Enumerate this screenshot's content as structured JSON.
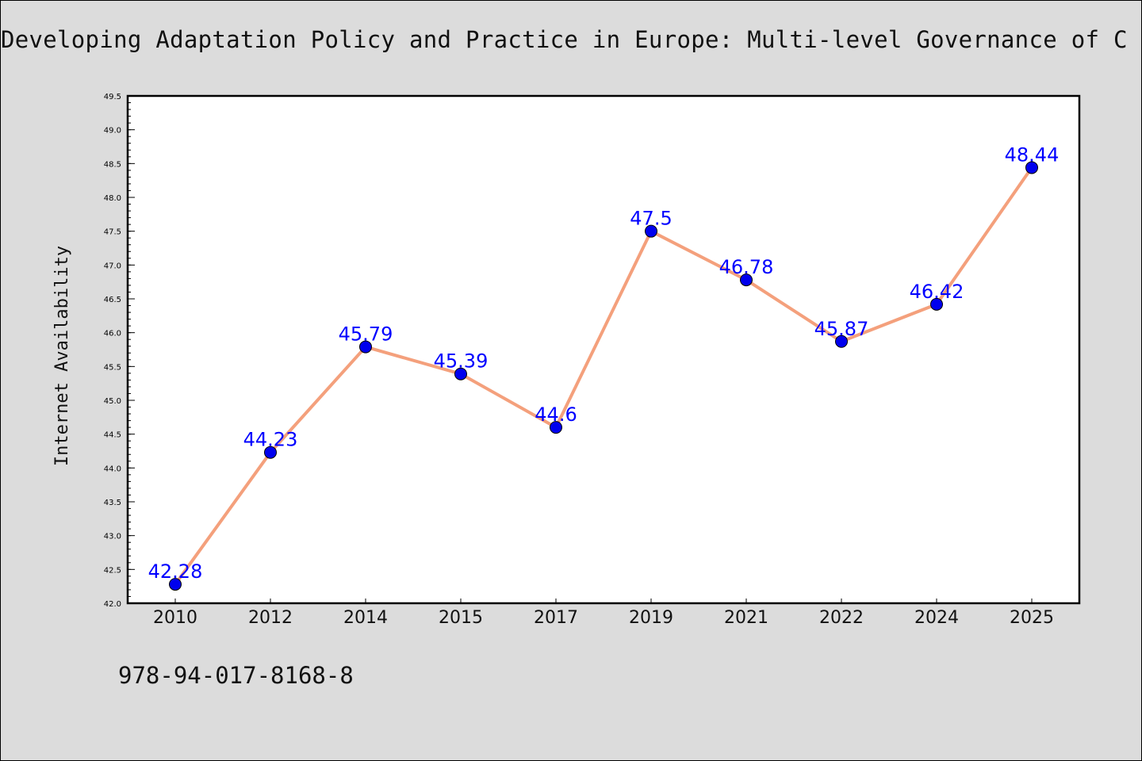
{
  "chart_data": {
    "type": "line",
    "title": "Developing Adaptation Policy and Practice in Europe: Multi-level Governance of C",
    "xlabel": "",
    "ylabel": "Internet Availability",
    "categories": [
      "2010",
      "2012",
      "2014",
      "2015",
      "2017",
      "2019",
      "2021",
      "2022",
      "2024",
      "2025"
    ],
    "series": [
      {
        "values": [
          42.28,
          44.23,
          45.79,
          45.39,
          44.6,
          47.5,
          46.78,
          45.87,
          46.42,
          48.44
        ],
        "data_labels": [
          "42.28",
          "44.23",
          "45.79",
          "45.39",
          "44.6",
          "47.5",
          "46.78",
          "45.87",
          "46.42",
          "48.44"
        ]
      }
    ],
    "ylim": [
      42.0,
      49.5
    ],
    "yticks": [
      "42.0",
      "42.5",
      "43.0",
      "43.5",
      "44.0",
      "44.5",
      "45.0",
      "45.5",
      "46.0",
      "46.5",
      "47.0",
      "47.5",
      "48.0",
      "48.5",
      "49.0",
      "49.5"
    ],
    "grid": false,
    "colors": {
      "line": "#f4a07c",
      "marker": "#0000ee",
      "label": "#0000ff",
      "background": "#dcdcdc",
      "plot_background": "#ffffff"
    }
  },
  "footer": {
    "isbn": "978-94-017-8168-8"
  }
}
